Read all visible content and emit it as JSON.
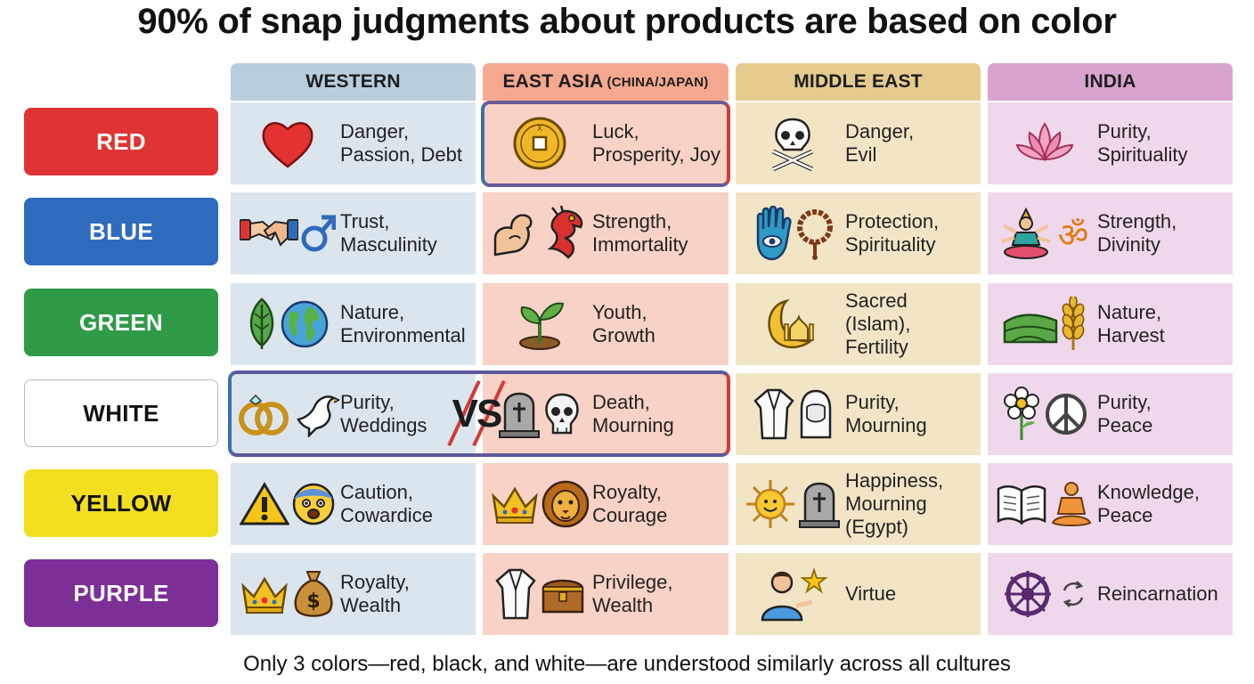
{
  "title": "90% of snap judgments about products are based on color",
  "footer": "Only 3 colors—red, black, and white—are understood similarly across all cultures",
  "vs_label": "VS",
  "columns": [
    {
      "label": "WESTERN",
      "sub": "",
      "color": "#b9cddd"
    },
    {
      "label": "EAST ASIA",
      "sub": "(CHINA/JAPAN)",
      "color": "#f4a890"
    },
    {
      "label": "MIDDLE EAST",
      "sub": "",
      "color": "#e5cc8e"
    },
    {
      "label": "INDIA",
      "sub": "",
      "color": "#d8a4cf"
    }
  ],
  "cell_colors": [
    "#dbe5ee",
    "#f8d2c6",
    "#f1e5c6",
    "#efd8eb"
  ],
  "rows": [
    {
      "label": "RED",
      "bg": "#e03333",
      "fg": "#ffffff",
      "cells": [
        {
          "text1": "Danger,",
          "text2": "Passion, Debt",
          "text3": "",
          "icons": [
            "heart-icon"
          ]
        },
        {
          "text1": "Luck,",
          "text2": "Prosperity, Joy",
          "text3": "",
          "icons": [
            "coin-icon"
          ]
        },
        {
          "text1": "Danger,",
          "text2": "Evil",
          "text3": "",
          "icons": [
            "skull-crossbones-icon"
          ]
        },
        {
          "text1": "Purity,",
          "text2": "Spirituality",
          "text3": "",
          "icons": [
            "lotus-icon"
          ]
        }
      ]
    },
    {
      "label": "BLUE",
      "bg": "#2f6bbd",
      "fg": "#ffffff",
      "cells": [
        {
          "text1": "Trust,",
          "text2": "Masculinity",
          "text3": "",
          "icons": [
            "handshake-icon",
            "male-symbol-icon"
          ]
        },
        {
          "text1": "Strength,",
          "text2": "Immortality",
          "text3": "",
          "icons": [
            "flexed-arm-icon",
            "dragon-icon"
          ]
        },
        {
          "text1": "Protection,",
          "text2": "Spirituality",
          "text3": "",
          "icons": [
            "hamsa-icon",
            "prayer-beads-icon"
          ]
        },
        {
          "text1": "Strength,",
          "text2": "Divinity",
          "text3": "",
          "icons": [
            "deity-icon",
            "om-icon"
          ]
        }
      ]
    },
    {
      "label": "GREEN",
      "bg": "#2f9a48",
      "fg": "#ffffff",
      "cells": [
        {
          "text1": "Nature,",
          "text2": "Environmental",
          "text3": "",
          "icons": [
            "leaf-icon",
            "globe-icon"
          ]
        },
        {
          "text1": "Youth,",
          "text2": "Growth",
          "text3": "",
          "icons": [
            "sprout-icon"
          ]
        },
        {
          "text1": "Sacred (Islam),",
          "text2": "Fertility",
          "text3": "",
          "icons": [
            "crescent-mosque-icon"
          ]
        },
        {
          "text1": "Nature,",
          "text2": "Harvest",
          "text3": "",
          "icons": [
            "fields-icon",
            "wheat-icon"
          ]
        }
      ]
    },
    {
      "label": "WHITE",
      "bg": "#ffffff",
      "fg": "#111111",
      "cells": [
        {
          "text1": "Purity,",
          "text2": "Weddings",
          "text3": "",
          "icons": [
            "wedding-rings-icon",
            "dove-icon"
          ]
        },
        {
          "text1": "Death,",
          "text2": "Mourning",
          "text3": "",
          "icons": [
            "tombstone-icon",
            "skull-icon"
          ]
        },
        {
          "text1": "Purity,",
          "text2": "Mourning",
          "text3": "",
          "icons": [
            "robe-icon",
            "veil-icon"
          ]
        },
        {
          "text1": "Purity,",
          "text2": "Peace",
          "text3": "",
          "icons": [
            "flower-icon",
            "peace-icon"
          ]
        }
      ]
    },
    {
      "label": "YELLOW",
      "bg": "#f2df1e",
      "fg": "#111111",
      "cells": [
        {
          "text1": "Caution,",
          "text2": "Cowardice",
          "text3": "",
          "icons": [
            "warning-icon",
            "scared-face-icon"
          ]
        },
        {
          "text1": "Royalty,",
          "text2": "Courage",
          "text3": "",
          "icons": [
            "crown-icon",
            "lion-icon"
          ]
        },
        {
          "text1": "Happiness,",
          "text2": "Mourning",
          "text3": "(Egypt)",
          "icons": [
            "sun-icon",
            "tombstone-icon"
          ]
        },
        {
          "text1": "Knowledge,",
          "text2": "Peace",
          "text3": "",
          "icons": [
            "book-icon",
            "meditation-icon"
          ]
        }
      ]
    },
    {
      "label": "PURPLE",
      "bg": "#7b2f97",
      "fg": "#ffffff",
      "cells": [
        {
          "text1": "Royalty,",
          "text2": "Wealth",
          "text3": "",
          "icons": [
            "crown-icon",
            "money-bag-icon"
          ]
        },
        {
          "text1": "Privilege,",
          "text2": "Wealth",
          "text3": "",
          "icons": [
            "robe-icon",
            "treasure-chest-icon"
          ]
        },
        {
          "text1": "",
          "text2": "Virtue",
          "text3": "",
          "icons": [
            "person-star-icon"
          ]
        },
        {
          "text1": "",
          "text2": "Reincarnation",
          "text3": "",
          "icons": [
            "dharma-wheel-icon",
            "cycle-icon"
          ]
        }
      ]
    }
  ]
}
